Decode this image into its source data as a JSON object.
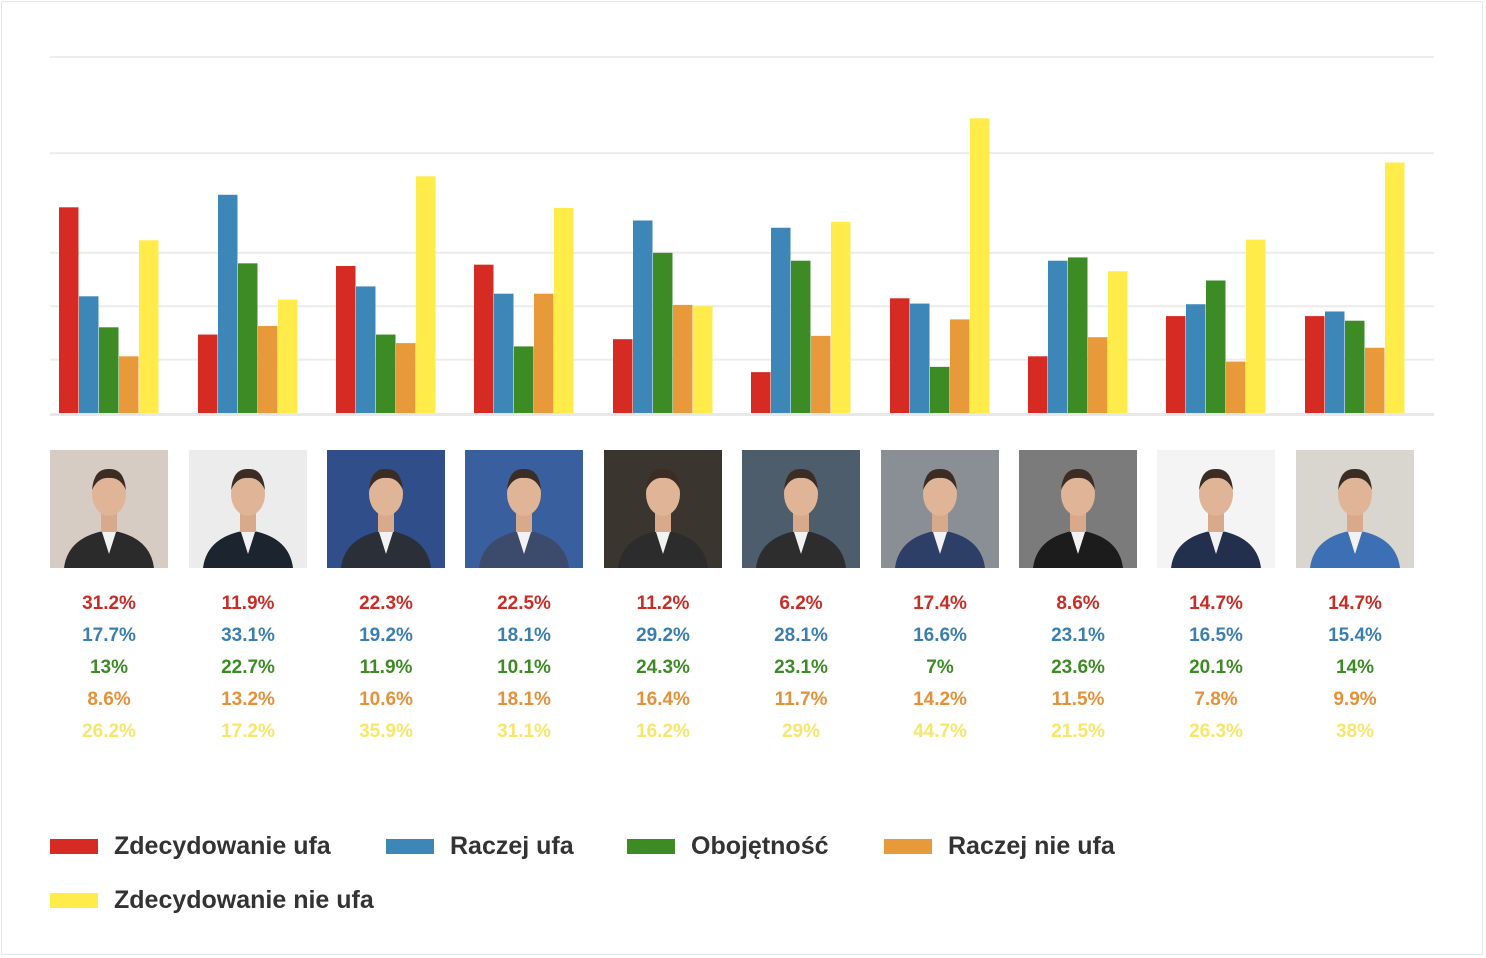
{
  "chart_data": {
    "type": "bar",
    "categories": [
      "",
      "",
      "",
      "",
      "",
      "",
      "",
      "",
      "",
      ""
    ],
    "series": [
      {
        "name": "Zdecydowanie ufa",
        "color": "#d62b22",
        "values": [
          31.2,
          11.9,
          22.3,
          22.5,
          11.2,
          6.2,
          17.4,
          8.6,
          14.7,
          14.7
        ],
        "labels": [
          "31.2%",
          "11.9%",
          "22.3%",
          "22.5%",
          "11.2%",
          "6.2%",
          "17.4%",
          "8.6%",
          "14.7%",
          "14.7%"
        ]
      },
      {
        "name": "Raczej ufa",
        "color": "#3c87b8",
        "values": [
          17.7,
          33.1,
          19.2,
          18.1,
          29.2,
          28.1,
          16.6,
          23.1,
          16.5,
          15.4
        ],
        "labels": [
          "17.7%",
          "33.1%",
          "19.2%",
          "18.1%",
          "29.2%",
          "28.1%",
          "16.6%",
          "23.1%",
          "16.5%",
          "15.4%"
        ]
      },
      {
        "name": "Obojętność",
        "color": "#3d8b25",
        "values": [
          13,
          22.7,
          11.9,
          10.1,
          24.3,
          23.1,
          7,
          23.6,
          20.1,
          14
        ],
        "labels": [
          "13%",
          "22.7%",
          "11.9%",
          "10.1%",
          "24.3%",
          "23.1%",
          "7%",
          "23.6%",
          "20.1%",
          "14%"
        ]
      },
      {
        "name": "Raczej nie ufa",
        "color": "#e8993a",
        "values": [
          8.6,
          13.2,
          10.6,
          18.1,
          16.4,
          11.7,
          14.2,
          11.5,
          7.8,
          9.9
        ],
        "labels": [
          "8.6%",
          "13.2%",
          "10.6%",
          "18.1%",
          "16.4%",
          "11.7%",
          "14.2%",
          "11.5%",
          "7.8%",
          "9.9%"
        ]
      },
      {
        "name": "Zdecydowanie nie ufa",
        "color": "#ffec4a",
        "values": [
          26.2,
          17.2,
          35.9,
          31.1,
          16.2,
          29,
          44.7,
          21.5,
          26.3,
          38
        ],
        "labels": [
          "26.2%",
          "17.2%",
          "35.9%",
          "31.1%",
          "16.2%",
          "29%",
          "44.7%",
          "21.5%",
          "26.3%",
          "38%"
        ]
      }
    ],
    "ylim": [
      0,
      54
    ],
    "grid": true,
    "legend_position": "bottom",
    "label_colors": [
      "#c92d26",
      "#3b7fb0",
      "#3d8b25",
      "#e5913a",
      "#f6e66a"
    ]
  }
}
